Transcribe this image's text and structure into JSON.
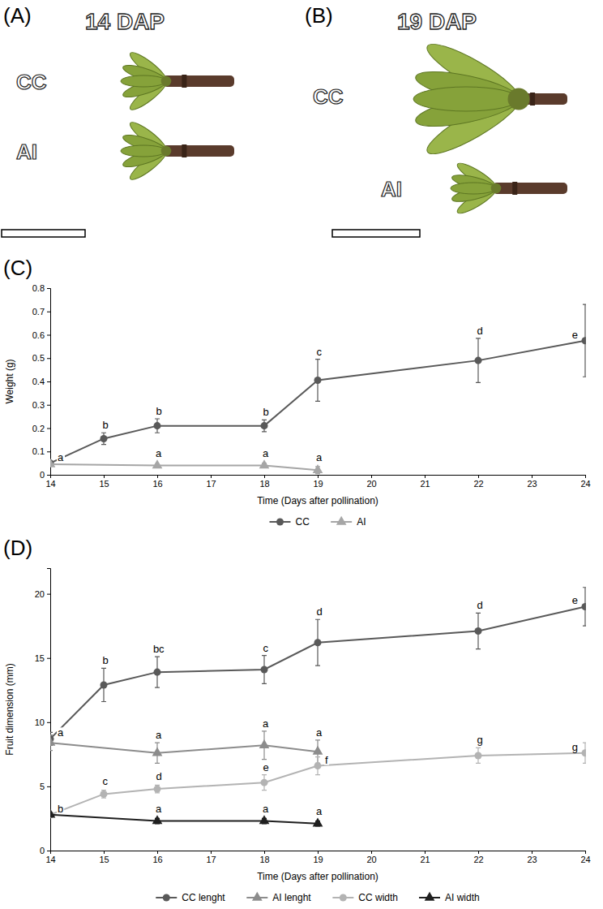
{
  "photo_panels": [
    {
      "letter": "(A)",
      "title": "14 DAP",
      "labels": [
        "CC",
        "AI"
      ]
    },
    {
      "letter": "(B)",
      "title": "19 DAP",
      "labels": [
        "CC",
        "AI"
      ]
    }
  ],
  "chart_data": [
    {
      "type": "line",
      "letter": "(C)",
      "x_label": "Time (Days after pollination)",
      "y_label": "Weight (g)",
      "xlim": [
        14,
        24
      ],
      "xticks": [
        14,
        15,
        16,
        17,
        18,
        19,
        20,
        21,
        22,
        23,
        24
      ],
      "ylim": [
        0,
        0.8
      ],
      "yticks": [
        0,
        0.1,
        0.2,
        0.3,
        0.4,
        0.5,
        0.6,
        0.7,
        0.8
      ],
      "legend": "bottom",
      "series": [
        {
          "name": "CC",
          "color": "#595959",
          "marker": "circle",
          "x": [
            14,
            15,
            16,
            18,
            19,
            22,
            24
          ],
          "values": [
            0.05,
            0.155,
            0.21,
            0.21,
            0.405,
            0.49,
            0.575
          ],
          "errors": [
            0.005,
            0.025,
            0.03,
            0.025,
            0.09,
            0.095,
            0.155
          ],
          "letters": [
            "a",
            "b",
            "b",
            "b",
            "c",
            "d",
            "e"
          ]
        },
        {
          "name": "AI",
          "color": "#a6a6a6",
          "marker": "triangle",
          "x": [
            14,
            16,
            18,
            19
          ],
          "values": [
            0.045,
            0.04,
            0.04,
            0.02
          ],
          "errors": [
            0.005,
            0.005,
            0.01,
            0.015
          ],
          "letters": [
            null,
            "a",
            "a",
            "a"
          ]
        }
      ]
    },
    {
      "type": "line",
      "letter": "(D)",
      "x_label": "Time (Days after pollination)",
      "y_label": "Fruit dimension (mm)",
      "xlim": [
        14,
        24
      ],
      "xticks": [
        14,
        15,
        16,
        17,
        18,
        19,
        20,
        21,
        22,
        23,
        24
      ],
      "ylim": [
        0,
        22
      ],
      "yticks": [
        0,
        5,
        10,
        15,
        20
      ],
      "legend": "bottom",
      "series": [
        {
          "name": "CC lenght",
          "color": "#595959",
          "marker": "circle",
          "x": [
            14,
            15,
            16,
            18,
            19,
            22,
            24
          ],
          "values": [
            8.7,
            12.9,
            13.9,
            14.1,
            16.2,
            17.1,
            19.0
          ],
          "errors": [
            0.5,
            1.3,
            1.2,
            1.1,
            1.8,
            1.4,
            1.5
          ],
          "letters": [
            "a",
            "b",
            "bc",
            "c",
            "d",
            "d",
            "e"
          ]
        },
        {
          "name": "AI lenght",
          "color": "#8c8c8c",
          "marker": "triangle",
          "x": [
            14,
            16,
            18,
            19
          ],
          "values": [
            8.4,
            7.6,
            8.2,
            7.7
          ],
          "errors": [
            0.6,
            0.8,
            1.1,
            0.9
          ],
          "letters": [
            null,
            "a",
            "a",
            "a"
          ]
        },
        {
          "name": "CC width",
          "color": "#b3b3b3",
          "marker": "circle",
          "x": [
            14,
            15,
            16,
            18,
            19,
            22,
            24
          ],
          "values": [
            2.8,
            4.4,
            4.8,
            5.3,
            6.6,
            7.4,
            7.6
          ],
          "errors": [
            0.2,
            0.3,
            0.3,
            0.6,
            0.7,
            0.6,
            0.8
          ],
          "letters": [
            "b",
            "c",
            "d",
            "e",
            "f",
            "g",
            "g"
          ]
        },
        {
          "name": "AI width",
          "color": "#1f1f1f",
          "marker": "triangle",
          "x": [
            14,
            16,
            18,
            19
          ],
          "values": [
            2.8,
            2.3,
            2.3,
            2.1
          ],
          "errors": [
            0.15,
            0.2,
            0.2,
            0.2
          ],
          "letters": [
            null,
            "a",
            "a",
            "a"
          ]
        }
      ]
    }
  ]
}
